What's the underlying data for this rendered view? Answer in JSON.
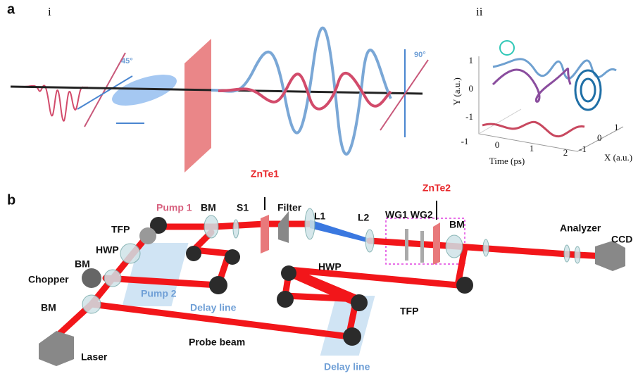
{
  "panel_a": {
    "label": "a",
    "sub_i": "i",
    "sub_ii": "ii",
    "angle_45": "45°",
    "angle_90": "90°",
    "plot": {
      "y_label": "Y (a.u.)",
      "y_ticks": [
        1,
        0,
        -1
      ],
      "time_ticks": [
        -1,
        0,
        1,
        2
      ],
      "time_label": "Time (ps)",
      "x_label": "X (a.u.)",
      "x_ticks": [
        1,
        0,
        -1
      ]
    }
  },
  "panel_b": {
    "label": "b",
    "znte1": "ZnTe1",
    "znte2": "ZnTe2",
    "pump1": "Pump 1",
    "bm_top": "BM",
    "s1": "S1",
    "filter": "Filter",
    "l1": "L1",
    "l2": "L2",
    "wg": "WG1 WG2",
    "bm_right": "BM",
    "tfp_left": "TFP",
    "hwp_left": "HWP",
    "bm_mid": "BM",
    "chopper": "Chopper",
    "bm_low": "BM",
    "pump2": "Pump 2",
    "delay1": "Delay line",
    "hwp_right": "HWP",
    "tfp_right": "TFP",
    "analyzer": "Analyzer",
    "ccd": "CCD",
    "laser": "Laser",
    "probe": "Probe beam",
    "delay2": "Delay line"
  }
}
